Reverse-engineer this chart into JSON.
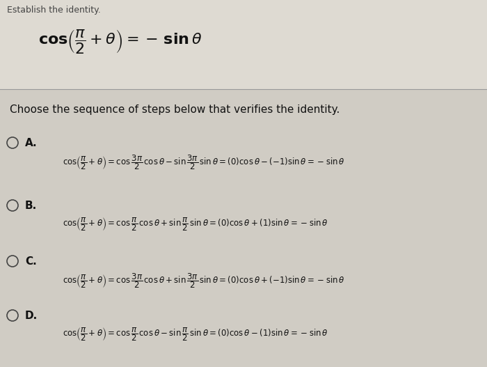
{
  "background_color": "#d8d4cc",
  "top_bg": "#e8e4dc",
  "text_color": "#111111",
  "line_color": "#999999",
  "circle_color": "#444444",
  "title_formula": "$\\cos\\!\\left(\\dfrac{\\pi}{2}+\\theta\\right) = -\\sin\\theta$",
  "question_text": "Choose the sequence of steps below that verifies the identity.",
  "options": [
    {
      "label": "A.",
      "formula_line1": "$\\cos\\!\\left(\\dfrac{\\pi}{2}+\\theta\\right) = \\cos\\dfrac{3\\pi}{2}\\,\\cos\\theta - \\sin\\dfrac{3\\pi}{2}\\,\\sin\\theta = (0)\\cos\\theta-(-1)\\sin\\theta = -\\sin\\theta$"
    },
    {
      "label": "B.",
      "formula_line1": "$\\cos\\!\\left(\\dfrac{\\pi}{2}+\\theta\\right) = \\cos\\dfrac{\\pi}{2}\\,\\cos\\theta + \\sin\\dfrac{\\pi}{2}\\,\\sin\\theta = (0)\\cos\\theta+(1)\\sin\\theta = -\\sin\\theta$"
    },
    {
      "label": "C.",
      "formula_line1": "$\\cos\\!\\left(\\dfrac{\\pi}{2}+\\theta\\right) = \\cos\\dfrac{3\\pi}{2}\\,\\cos\\theta + \\sin\\dfrac{3\\pi}{2}\\,\\sin\\theta = (0)\\cos\\theta+(-1)\\sin\\theta = -\\sin\\theta$"
    },
    {
      "label": "D.",
      "formula_line1": "$\\cos\\!\\left(\\dfrac{\\pi}{2}+\\theta\\right) = \\cos\\dfrac{\\pi}{2}\\,\\cos\\theta - \\sin\\dfrac{\\pi}{2}\\,\\sin\\theta = (0)\\cos\\theta-(1)\\sin\\theta = -\\sin\\theta$"
    }
  ],
  "figsize": [
    7.0,
    5.27
  ],
  "dpi": 100
}
